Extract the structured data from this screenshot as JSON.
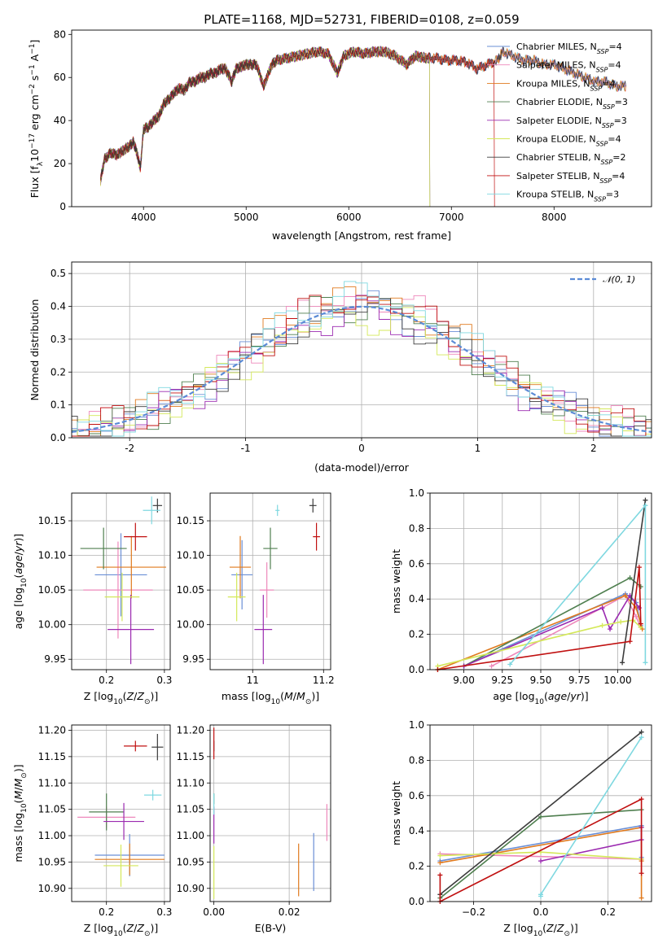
{
  "colors": [
    "#6a8fd6",
    "#ee88bb",
    "#e07a1e",
    "#4f7f4f",
    "#9b2ab0",
    "#d4e85a",
    "#3c3c3c",
    "#c01010",
    "#7fd8e0"
  ],
  "chart_data": [
    {
      "id": "spectrum",
      "type": "line",
      "title": "PLATE=1168, MJD=52731, FIBERID=0108, z=0.059",
      "xlabel": "wavelength [Angstrom, rest frame]",
      "ylabel": "Flux [f_λ 10^-17 erg cm^-2 s^-1 A^-1]",
      "xlim": [
        3300,
        8950
      ],
      "ylim": [
        0,
        82
      ],
      "xticks": [
        4000,
        5000,
        6000,
        7000,
        8000
      ],
      "yticks": [
        0,
        20,
        40,
        60,
        80
      ],
      "grid": false,
      "legend_position": "top-right",
      "spectrum_x": [
        3580,
        3620,
        3680,
        3740,
        3800,
        3860,
        3900,
        3930,
        3970,
        4000,
        4050,
        4100,
        4150,
        4200,
        4250,
        4300,
        4350,
        4400,
        4450,
        4500,
        4550,
        4600,
        4650,
        4700,
        4750,
        4800,
        4860,
        4900,
        4950,
        5000,
        5050,
        5100,
        5170,
        5250,
        5300,
        5400,
        5500,
        5600,
        5700,
        5800,
        5890,
        5950,
        6050,
        6150,
        6250,
        6350,
        6450,
        6563,
        6650,
        6750,
        6850,
        6950,
        7050,
        7150,
        7250,
        7350,
        7450,
        7500,
        7600,
        7700,
        7800,
        7900,
        8000,
        8100,
        8200,
        8300,
        8400,
        8500,
        8600,
        8700
      ],
      "spectrum_y": [
        12,
        22,
        25,
        24,
        26,
        28,
        30,
        26,
        18,
        36,
        37,
        40,
        42,
        48,
        50,
        53,
        55,
        54,
        58,
        58,
        60,
        60,
        62,
        62,
        64,
        64,
        58,
        64,
        65,
        66,
        66,
        66,
        56,
        66,
        68,
        69,
        70,
        71,
        72,
        71,
        62,
        70,
        72,
        71,
        72,
        72,
        70,
        66,
        70,
        69,
        69,
        68,
        68,
        67,
        64,
        66,
        68,
        72,
        70,
        68,
        68,
        66,
        66,
        64,
        62,
        60,
        58,
        58,
        56,
        56
      ],
      "series": [
        {
          "name": "Chabrier MILES, N_SSP=4",
          "label": "Chabrier MILES, N",
          "sub": "SSP",
          "tail": "=4"
        },
        {
          "name": "Salpeter MILES, N_SSP=4",
          "label": "Salpeter MILES, N",
          "sub": "SSP",
          "tail": "=4"
        },
        {
          "name": "Kroupa MILES, N_SSP=4",
          "label": "Kroupa MILES, N",
          "sub": "SSP",
          "tail": "=4"
        },
        {
          "name": "Chabrier ELODIE, N_SSP=3",
          "label": "Chabrier ELODIE, N",
          "sub": "SSP",
          "tail": "=3",
          "cut": 6790
        },
        {
          "name": "Salpeter ELODIE, N_SSP=3",
          "label": "Salpeter ELODIE, N",
          "sub": "SSP",
          "tail": "=3",
          "cut": 6790
        },
        {
          "name": "Kroupa ELODIE, N_SSP=4",
          "label": "Kroupa ELODIE, N",
          "sub": "SSP",
          "tail": "=4",
          "cut": 6790
        },
        {
          "name": "Chabrier STELIB, N_SSP=2",
          "label": "Chabrier STELIB, N",
          "sub": "SSP",
          "tail": "=2"
        },
        {
          "name": "Salpeter STELIB, N_SSP=4",
          "label": "Salpeter STELIB, N",
          "sub": "SSP",
          "tail": "=4",
          "cut": 7420
        },
        {
          "name": "Kroupa STELIB, N_SSP=3",
          "label": "Kroupa STELIB, N",
          "sub": "SSP",
          "tail": "=3"
        }
      ]
    },
    {
      "id": "residuals",
      "type": "line",
      "xlabel": "(data-model)/error",
      "ylabel": "Normed distribution",
      "xlim": [
        -2.5,
        2.5
      ],
      "ylim": [
        0,
        0.535
      ],
      "xticks": [
        -2,
        -1,
        0,
        1,
        2
      ],
      "yticks": [
        0.0,
        0.1,
        0.2,
        0.3,
        0.4,
        0.5
      ],
      "grid": true,
      "legend_position": "top-right",
      "legend_label": "𝒩(0, 1)",
      "bin_width": 0.1
    },
    {
      "id": "age-vs-z",
      "type": "scatter",
      "xlabel": "Z [log10(Z/Z⊙)]",
      "ylabel": "age [log10(age/yr)]",
      "xlim": [
        0.14,
        0.31
      ],
      "ylim": [
        9.935,
        10.19
      ],
      "xticks": [
        0.2,
        0.3
      ],
      "yticks": [
        9.95,
        10.0,
        10.05,
        10.1,
        10.15
      ],
      "grid": true,
      "points": [
        {
          "x": 0.225,
          "y": 10.072,
          "xerr": 0.045,
          "yerr": 0.06
        },
        {
          "x": 0.22,
          "y": 10.05,
          "xerr": 0.06,
          "yerr": 0.07
        },
        {
          "x": 0.243,
          "y": 10.083,
          "xerr": 0.06,
          "yerr": 0.045
        },
        {
          "x": 0.195,
          "y": 10.11,
          "xerr": 0.04,
          "yerr": 0.03
        },
        {
          "x": 0.242,
          "y": 9.993,
          "xerr": 0.04,
          "yerr": 0.05
        },
        {
          "x": 0.227,
          "y": 10.04,
          "xerr": 0.03,
          "yerr": 0.035
        },
        {
          "x": 0.288,
          "y": 10.172,
          "xerr": 0.008,
          "yerr": 0.01
        },
        {
          "x": 0.25,
          "y": 10.127,
          "xerr": 0.02,
          "yerr": 0.02
        },
        {
          "x": 0.278,
          "y": 10.165,
          "xerr": 0.015,
          "yerr": 0.02
        }
      ]
    },
    {
      "id": "age-vs-mass",
      "type": "scatter",
      "xlabel": "mass [log10(M/M⊙)]",
      "ylabel": "",
      "xlim": [
        10.88,
        11.22
      ],
      "ylim": [
        9.935,
        10.19
      ],
      "xticks": [
        11.0,
        11.2
      ],
      "yticks": [
        9.95,
        10.0,
        10.05,
        10.1,
        10.15
      ],
      "grid": true,
      "points": [
        {
          "x": 10.97,
          "y": 10.072,
          "xerr": 0.03,
          "yerr": 0.05
        },
        {
          "x": 11.04,
          "y": 10.05,
          "xerr": 0.02,
          "yerr": 0.04
        },
        {
          "x": 10.965,
          "y": 10.083,
          "xerr": 0.03,
          "yerr": 0.045
        },
        {
          "x": 11.05,
          "y": 10.11,
          "xerr": 0.02,
          "yerr": 0.03
        },
        {
          "x": 11.03,
          "y": 9.993,
          "xerr": 0.025,
          "yerr": 0.05
        },
        {
          "x": 10.955,
          "y": 10.04,
          "xerr": 0.025,
          "yerr": 0.035
        },
        {
          "x": 11.17,
          "y": 10.172,
          "xerr": 0.01,
          "yerr": 0.01
        },
        {
          "x": 11.18,
          "y": 10.127,
          "xerr": 0.01,
          "yerr": 0.02
        },
        {
          "x": 11.07,
          "y": 10.165,
          "xerr": 0.006,
          "yerr": 0.008
        }
      ]
    },
    {
      "id": "weight-vs-age",
      "type": "line",
      "xlabel": "age [log10(age/yr)]",
      "ylabel": "mass weight",
      "xlim": [
        8.78,
        10.22
      ],
      "ylim": [
        0,
        1.0
      ],
      "xticks": [
        9.0,
        9.25,
        9.5,
        9.75,
        10.0
      ],
      "xtick_labels": [
        "9.00",
        "9.25",
        "9.50",
        "9.75",
        "10.00"
      ],
      "yticks": [
        0.0,
        0.2,
        0.4,
        0.6,
        0.8,
        1.0
      ],
      "grid": true,
      "series": [
        {
          "x": [
            9.0,
            10.05,
            10.12,
            10.15
          ],
          "y": [
            0.02,
            0.43,
            0.38,
            0.25
          ]
        },
        {
          "x": [
            9.18,
            10.05,
            10.12,
            10.15
          ],
          "y": [
            0.02,
            0.42,
            0.3,
            0.24
          ]
        },
        {
          "x": [
            8.83,
            10.05,
            10.12,
            10.16
          ],
          "y": [
            0.0,
            0.42,
            0.35,
            0.23
          ]
        },
        {
          "x": [
            9.0,
            10.08,
            10.15
          ],
          "y": [
            0.02,
            0.52,
            0.47
          ]
        },
        {
          "x": [
            9.0,
            9.9,
            9.95,
            10.08,
            10.14
          ],
          "y": [
            0.02,
            0.35,
            0.23,
            0.42,
            0.35
          ]
        },
        {
          "x": [
            8.83,
            9.9,
            10.02,
            10.1,
            10.15
          ],
          "y": [
            0.02,
            0.25,
            0.27,
            0.28,
            0.24
          ]
        },
        {
          "x": [
            10.03,
            10.18
          ],
          "y": [
            0.04,
            0.96
          ]
        },
        {
          "x": [
            8.83,
            10.08,
            10.14,
            10.15
          ],
          "y": [
            0.0,
            0.16,
            0.58,
            0.26
          ]
        },
        {
          "x": [
            9.3,
            10.18,
            10.18
          ],
          "y": [
            0.03,
            0.93,
            0.04
          ]
        }
      ]
    },
    {
      "id": "mass-vs-z",
      "type": "scatter",
      "xlabel": "Z [log10(Z/Z⊙)]",
      "ylabel": "mass [log10(M/M⊙)]",
      "xlim": [
        0.14,
        0.31
      ],
      "ylim": [
        10.875,
        11.21
      ],
      "xticks": [
        0.2,
        0.3
      ],
      "yticks": [
        10.9,
        10.95,
        11.0,
        11.05,
        11.1,
        11.15,
        11.2
      ],
      "grid": true,
      "points": [
        {
          "x": 0.24,
          "y": 10.963,
          "xerr": 0.06,
          "yerr": 0.04
        },
        {
          "x": 0.2,
          "y": 11.035,
          "xerr": 0.05,
          "yerr": 0.02
        },
        {
          "x": 0.24,
          "y": 10.955,
          "xerr": 0.06,
          "yerr": 0.03
        },
        {
          "x": 0.2,
          "y": 11.045,
          "xerr": 0.03,
          "yerr": 0.035
        },
        {
          "x": 0.23,
          "y": 11.027,
          "xerr": 0.035,
          "yerr": 0.035
        },
        {
          "x": 0.225,
          "y": 10.943,
          "xerr": 0.03,
          "yerr": 0.04
        },
        {
          "x": 0.288,
          "y": 11.168,
          "xerr": 0.01,
          "yerr": 0.025
        },
        {
          "x": 0.25,
          "y": 11.17,
          "xerr": 0.02,
          "yerr": 0.01
        },
        {
          "x": 0.28,
          "y": 11.077,
          "xerr": 0.015,
          "yerr": 0.01
        }
      ]
    },
    {
      "id": "mass-vs-ebv",
      "type": "scatter",
      "xlabel": "E(B-V)",
      "ylabel": "",
      "xlim": [
        -0.001,
        0.031
      ],
      "ylim": [
        10.875,
        11.21
      ],
      "xticks": [
        0.0,
        0.02
      ],
      "xtick_labels": [
        "0.00",
        "0.02"
      ],
      "yticks": [
        10.9,
        10.95,
        11.0,
        11.05,
        11.1,
        11.15,
        11.2
      ],
      "grid": true,
      "points": [
        {
          "x": 0.0265,
          "y": 10.95,
          "xerr": 0,
          "yerr": 0.055
        },
        {
          "x": 0.03,
          "y": 11.025,
          "xerr": 0,
          "yerr": 0.035
        },
        {
          "x": 0.0225,
          "y": 10.935,
          "xerr": 0,
          "yerr": 0.05
        },
        {
          "x": 0.0,
          "y": 11.07,
          "xerr": 0,
          "yerr": 0.01
        },
        {
          "x": 0.0,
          "y": 11.02,
          "xerr": 0,
          "yerr": 0.035
        },
        {
          "x": 0.0,
          "y": 10.93,
          "xerr": 0,
          "yerr": 0.05
        },
        {
          "x": 0.0,
          "y": 11.17,
          "xerr": 0,
          "yerr": 0.01
        },
        {
          "x": 0.0,
          "y": 11.175,
          "xerr": 0,
          "yerr": 0.03
        },
        {
          "x": 0.0,
          "y": 11.06,
          "xerr": 0,
          "yerr": 0.02
        }
      ]
    },
    {
      "id": "weight-vs-z",
      "type": "line",
      "xlabel": "Z [log10(Z/Z⊙)]",
      "ylabel": "mass weight",
      "xlim": [
        -0.33,
        0.33
      ],
      "ylim": [
        0,
        1.0
      ],
      "xticks": [
        -0.2,
        0.0,
        0.2
      ],
      "xtick_labels": [
        "−0.2",
        "0.0",
        "0.2"
      ],
      "yticks": [
        0.0,
        0.2,
        0.4,
        0.6,
        0.8,
        1.0
      ],
      "grid": true,
      "series": [
        {
          "x": [
            -0.3,
            0.3,
            0.3
          ],
          "y": [
            0.23,
            0.43,
            0.25
          ]
        },
        {
          "x": [
            -0.3,
            0.3,
            0.3
          ],
          "y": [
            0.27,
            0.24,
            0.42
          ]
        },
        {
          "x": [
            -0.3,
            0.3,
            0.3,
            0.3
          ],
          "y": [
            0.22,
            0.42,
            0.02,
            0.23
          ]
        },
        {
          "x": [
            -0.3,
            0.0,
            0.3
          ],
          "y": [
            0.02,
            0.48,
            0.52
          ]
        },
        {
          "x": [
            0.0,
            0.3,
            0.3
          ],
          "y": [
            0.23,
            0.35,
            0.42
          ]
        },
        {
          "x": [
            -0.3,
            0.0,
            0.3
          ],
          "y": [
            0.26,
            0.28,
            0.24
          ]
        },
        {
          "x": [
            -0.3,
            0.3
          ],
          "y": [
            0.04,
            0.96
          ]
        },
        {
          "x": [
            -0.3,
            -0.3,
            0.3,
            0.3
          ],
          "y": [
            0.15,
            0.0,
            0.58,
            0.16
          ]
        },
        {
          "x": [
            0.0,
            0.0,
            0.3
          ],
          "y": [
            0.03,
            0.04,
            0.93
          ]
        }
      ]
    }
  ]
}
